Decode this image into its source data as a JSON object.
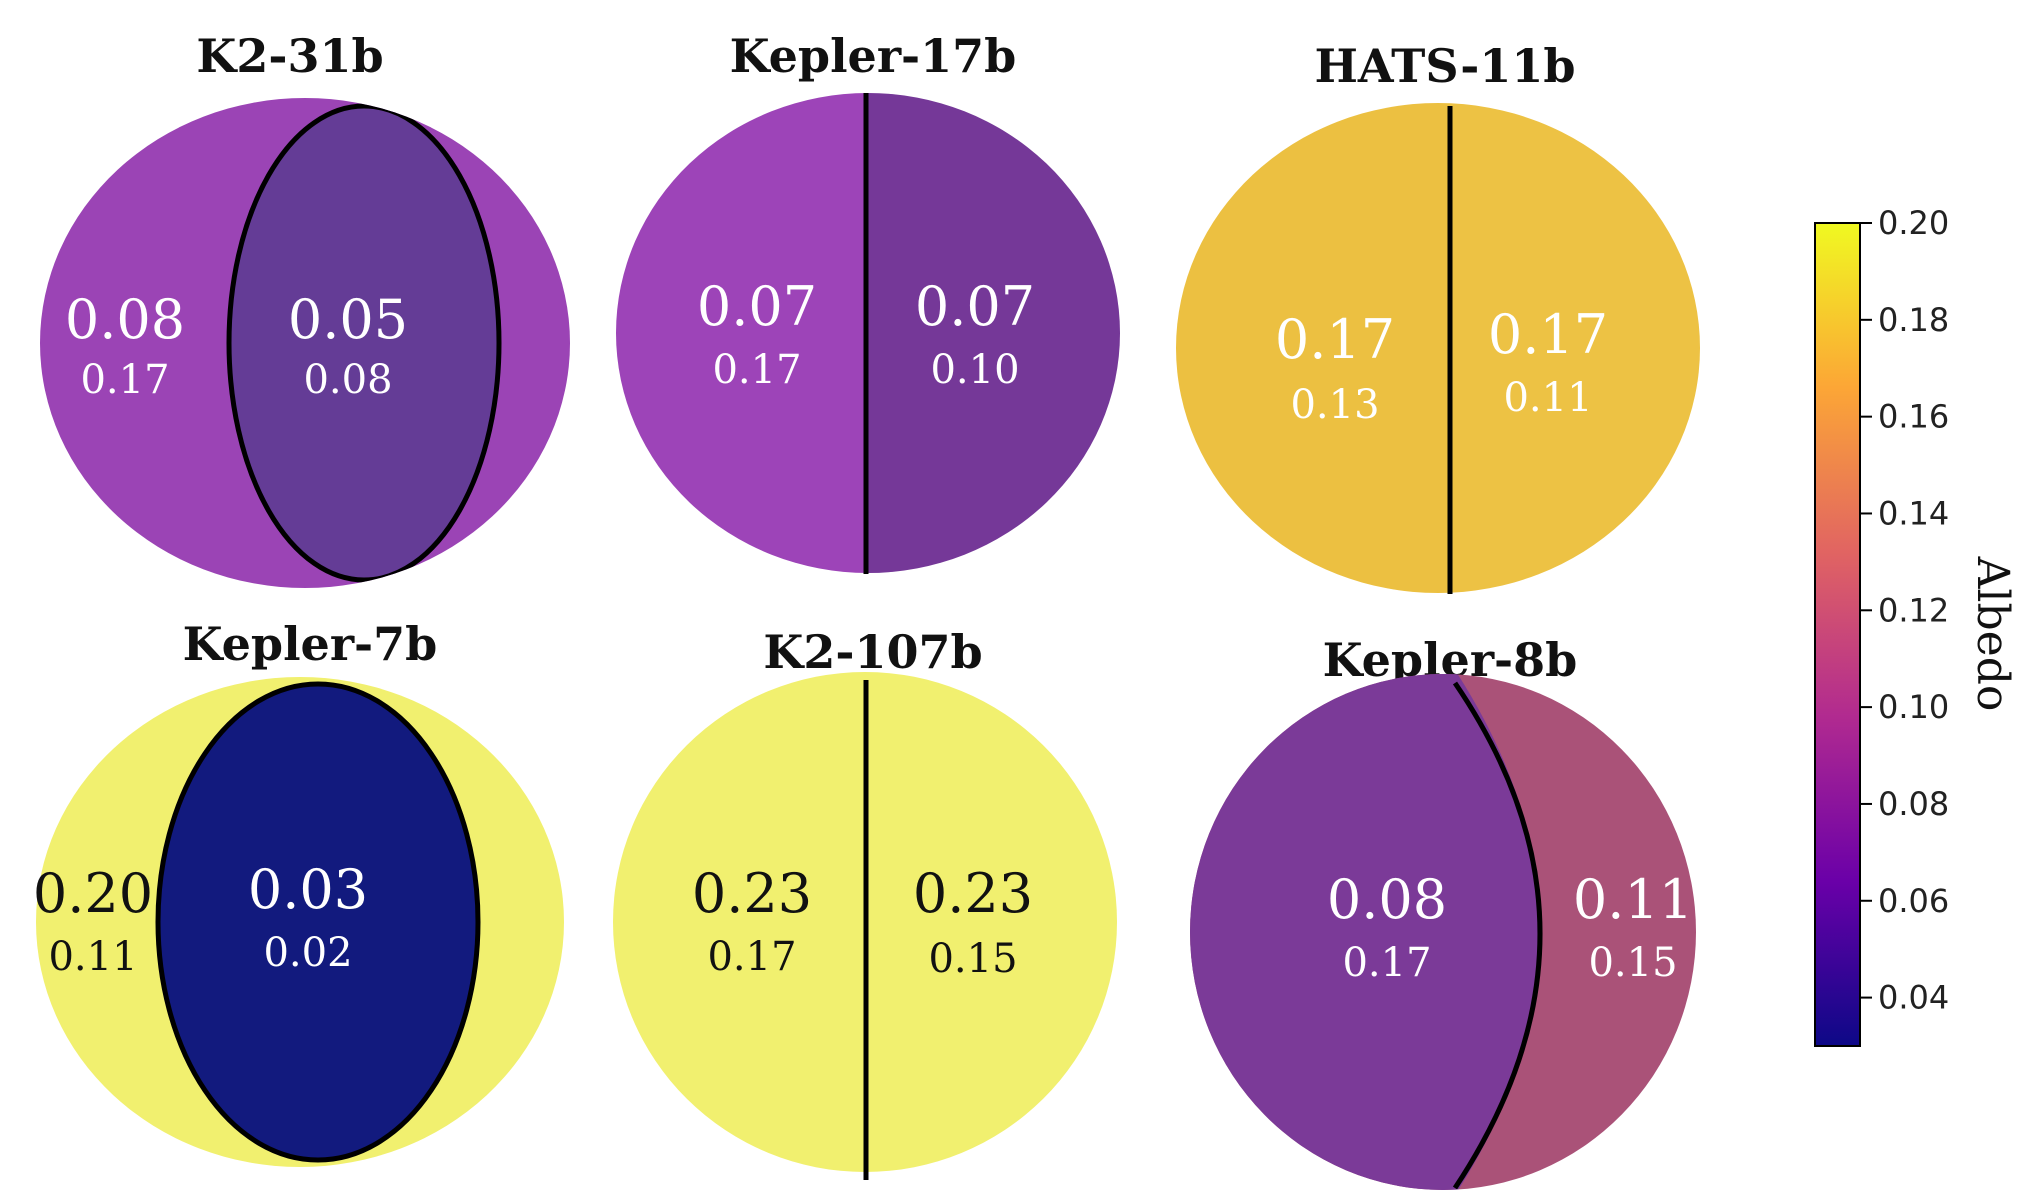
{
  "chart_data": {
    "type": "heatmap",
    "description_type": "planet albedo maps (two-region disks)",
    "colorbar": {
      "label": "Albedo",
      "min": 0.03,
      "max": 0.2,
      "ticks": [
        "0.04",
        "0.06",
        "0.08",
        "0.10",
        "0.12",
        "0.14",
        "0.16",
        "0.18",
        "0.20"
      ],
      "colors": [
        "#0d0887",
        "#6a00a8",
        "#b12a90",
        "#e16462",
        "#fca636",
        "#f0f921"
      ]
    },
    "planets": [
      {
        "name": "K2-31b",
        "layout": "inner-ellipse",
        "regions": [
          {
            "region": "outer",
            "value": "0.08",
            "uncertainty": "0.17",
            "color": "#9b44b5",
            "text_color": "#ffffff"
          },
          {
            "region": "inner",
            "value": "0.05",
            "uncertainty": "0.08",
            "color": "#643c96",
            "text_color": "#ffffff"
          }
        ]
      },
      {
        "name": "Kepler-17b",
        "layout": "vertical-split",
        "regions": [
          {
            "region": "left",
            "value": "0.07",
            "uncertainty": "0.17",
            "color": "#9d44b8",
            "text_color": "#ffffff"
          },
          {
            "region": "right",
            "value": "0.07",
            "uncertainty": "0.10",
            "color": "#753898",
            "text_color": "#ffffff"
          }
        ]
      },
      {
        "name": "HATS-11b",
        "layout": "vertical-split",
        "regions": [
          {
            "region": "left",
            "value": "0.17",
            "uncertainty": "0.13",
            "color": "#ecc041",
            "text_color": "#ffffff"
          },
          {
            "region": "right",
            "value": "0.17",
            "uncertainty": "0.11",
            "color": "#edc244",
            "text_color": "#ffffff"
          }
        ]
      },
      {
        "name": "Kepler-7b",
        "layout": "inner-ellipse",
        "regions": [
          {
            "region": "outer",
            "value": "0.20",
            "uncertainty": "0.11",
            "color": "#f1f06f",
            "text_color": "#111111"
          },
          {
            "region": "inner",
            "value": "0.03",
            "uncertainty": "0.02",
            "color": "#121a7e",
            "text_color": "#ffffff"
          }
        ]
      },
      {
        "name": "K2-107b",
        "layout": "vertical-split",
        "regions": [
          {
            "region": "left",
            "value": "0.23",
            "uncertainty": "0.17",
            "color": "#f1f06f",
            "text_color": "#111111"
          },
          {
            "region": "right",
            "value": "0.23",
            "uncertainty": "0.15",
            "color": "#f1f06f",
            "text_color": "#111111"
          }
        ]
      },
      {
        "name": "Kepler-8b",
        "layout": "crescent-right",
        "regions": [
          {
            "region": "left",
            "value": "0.08",
            "uncertainty": "0.17",
            "color": "#7b3a98",
            "text_color": "#ffffff"
          },
          {
            "region": "right",
            "value": "0.11",
            "uncertainty": "0.15",
            "color": "#aa5278",
            "text_color": "#ffffff"
          }
        ]
      }
    ]
  }
}
